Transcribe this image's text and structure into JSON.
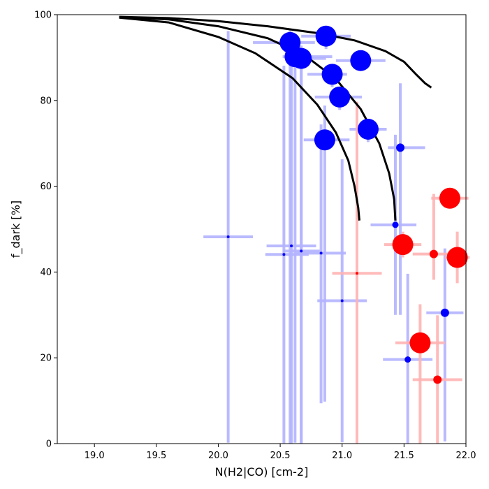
{
  "chart_data": {
    "type": "scatter",
    "title": "",
    "xlabel": "N(H2|CO) [cm-2]",
    "ylabel": "f_dark [%]",
    "xlim": [
      18.7,
      22.0
    ],
    "ylim": [
      0,
      100
    ],
    "xticks": [
      "19.0",
      "19.5",
      "20.0",
      "20.5",
      "21.0",
      "21.5",
      "22.0"
    ],
    "yticks": [
      "0",
      "20",
      "40",
      "60",
      "80",
      "100"
    ],
    "grid": false,
    "legend": "none",
    "colors": {
      "blue_points": "#0000ff",
      "red_points": "#ff0000",
      "blue_errorbars": "#b3b3ff",
      "red_errorbars": "#ffb3b3",
      "curves": "#000000"
    },
    "series": [
      {
        "color": "blue",
        "points": [
          {
            "x": 20.58,
            "y": 93.5,
            "xerr_lo": 0.3,
            "xerr_hi": 0.2,
            "yerr_lo": 95,
            "yerr_hi": 3,
            "size": "large"
          },
          {
            "x": 20.87,
            "y": 95.0,
            "xerr_lo": 0.2,
            "xerr_hi": 0.2,
            "yerr_lo": 3,
            "yerr_hi": 2,
            "size": "large"
          },
          {
            "x": 20.62,
            "y": 90.2,
            "xerr_lo": 0.1,
            "xerr_hi": 0.3,
            "yerr_lo": 90,
            "yerr_hi": 3,
            "size": "large"
          },
          {
            "x": 20.67,
            "y": 89.8,
            "xerr_lo": 0.1,
            "xerr_hi": 0.2,
            "yerr_lo": 90,
            "yerr_hi": 3,
            "size": "large"
          },
          {
            "x": 21.15,
            "y": 89.3,
            "xerr_lo": 0.2,
            "xerr_hi": 0.2,
            "yerr_lo": 2,
            "yerr_hi": 2,
            "size": "large"
          },
          {
            "x": 20.92,
            "y": 86.1,
            "xerr_lo": 0.2,
            "xerr_hi": 0.12,
            "yerr_lo": 3,
            "yerr_hi": 2,
            "size": "large"
          },
          {
            "x": 20.98,
            "y": 80.8,
            "xerr_lo": 0.2,
            "xerr_hi": 0.18,
            "yerr_lo": 3,
            "yerr_hi": 2,
            "size": "large"
          },
          {
            "x": 21.21,
            "y": 73.3,
            "xerr_lo": 0.15,
            "xerr_hi": 0.15,
            "yerr_lo": 3,
            "yerr_hi": 2,
            "size": "large"
          },
          {
            "x": 20.86,
            "y": 70.8,
            "xerr_lo": 0.17,
            "xerr_hi": 0.2,
            "yerr_lo": 61,
            "yerr_hi": 8,
            "size": "large"
          },
          {
            "x": 21.47,
            "y": 69.0,
            "xerr_lo": 0.1,
            "xerr_hi": 0.2,
            "yerr_lo": 39,
            "yerr_hi": 15,
            "size": "medium"
          },
          {
            "x": 21.43,
            "y": 51.0,
            "xerr_lo": 0.2,
            "xerr_hi": 0.17,
            "yerr_lo": 21,
            "yerr_hi": 21,
            "size": "small"
          },
          {
            "x": 20.08,
            "y": 48.2,
            "xerr_lo": 0.2,
            "xerr_hi": 0.2,
            "yerr_lo": 48,
            "yerr_hi": 48,
            "size": "tiny"
          },
          {
            "x": 20.59,
            "y": 46.1,
            "xerr_lo": 0.2,
            "xerr_hi": 0.2,
            "yerr_lo": 46,
            "yerr_hi": 46,
            "size": "tiny"
          },
          {
            "x": 20.67,
            "y": 44.9,
            "xerr_lo": 0.15,
            "xerr_hi": 0.15,
            "yerr_lo": 45,
            "yerr_hi": 45,
            "size": "tiny"
          },
          {
            "x": 20.53,
            "y": 44.1,
            "xerr_lo": 0.15,
            "xerr_hi": 0.2,
            "yerr_lo": 44,
            "yerr_hi": 44,
            "size": "tiny"
          },
          {
            "x": 20.83,
            "y": 44.4,
            "xerr_lo": 0.2,
            "xerr_hi": 0.2,
            "yerr_lo": 35,
            "yerr_hi": 30,
            "size": "tiny"
          },
          {
            "x": 21.0,
            "y": 33.3,
            "xerr_lo": 0.2,
            "xerr_hi": 0.2,
            "yerr_lo": 33,
            "yerr_hi": 33,
            "size": "tiny"
          },
          {
            "x": 21.83,
            "y": 30.5,
            "xerr_lo": 0.15,
            "xerr_hi": 0.15,
            "yerr_lo": 30,
            "yerr_hi": 15,
            "size": "medium"
          },
          {
            "x": 21.53,
            "y": 19.6,
            "xerr_lo": 0.2,
            "xerr_hi": 0.2,
            "yerr_lo": 20,
            "yerr_hi": 20,
            "size": "small"
          }
        ]
      },
      {
        "color": "red",
        "points": [
          {
            "x": 21.87,
            "y": 57.2,
            "xerr_lo": 0.15,
            "xerr_hi": 0.15,
            "yerr_lo": 2,
            "yerr_hi": 2,
            "size": "large"
          },
          {
            "x": 21.49,
            "y": 46.4,
            "xerr_lo": 0.15,
            "xerr_hi": 0.15,
            "yerr_lo": 3,
            "yerr_hi": 3,
            "size": "large"
          },
          {
            "x": 21.74,
            "y": 44.2,
            "xerr_lo": 0.17,
            "xerr_hi": 0.2,
            "yerr_lo": 6,
            "yerr_hi": 14,
            "size": "medium"
          },
          {
            "x": 21.93,
            "y": 43.4,
            "xerr_lo": 0.1,
            "xerr_hi": 0.1,
            "yerr_lo": 6,
            "yerr_hi": 6,
            "size": "large"
          },
          {
            "x": 21.12,
            "y": 39.7,
            "xerr_lo": 0.2,
            "xerr_hi": 0.2,
            "yerr_lo": 40,
            "yerr_hi": 40,
            "size": "tiny"
          },
          {
            "x": 21.63,
            "y": 23.5,
            "xerr_lo": 0.2,
            "xerr_hi": 0.2,
            "yerr_lo": 24,
            "yerr_hi": 9,
            "size": "large"
          },
          {
            "x": 21.77,
            "y": 14.9,
            "xerr_lo": 0.2,
            "xerr_hi": 0.2,
            "yerr_lo": 15,
            "yerr_hi": 15,
            "size": "medium"
          }
        ]
      }
    ],
    "curves": [
      {
        "x": [
          19.2,
          19.6,
          20.0,
          20.3,
          20.6,
          20.8,
          20.95,
          21.05,
          21.1,
          21.13,
          21.14
        ],
        "y": [
          99.3,
          98.2,
          94.8,
          91.0,
          85.2,
          79.0,
          72.5,
          66.0,
          60.0,
          55.0,
          52.0
        ]
      },
      {
        "x": [
          19.2,
          19.6,
          20.0,
          20.4,
          20.7,
          20.95,
          21.15,
          21.3,
          21.38,
          21.42,
          21.43
        ],
        "y": [
          99.4,
          98.9,
          97.3,
          94.5,
          90.5,
          85.0,
          78.0,
          70.0,
          63.0,
          57.0,
          52.0
        ]
      },
      {
        "x": [
          19.2,
          19.6,
          20.0,
          20.4,
          20.8,
          21.1,
          21.35,
          21.5,
          21.6,
          21.67,
          21.72
        ],
        "y": [
          99.5,
          99.2,
          98.5,
          97.3,
          95.7,
          94.0,
          91.5,
          89.0,
          86.0,
          84.0,
          83.0
        ]
      }
    ]
  }
}
